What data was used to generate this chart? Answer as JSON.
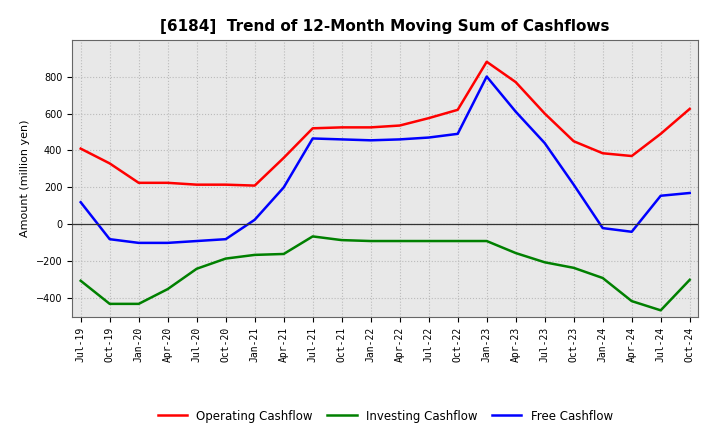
{
  "title": "[6184]  Trend of 12-Month Moving Sum of Cashflows",
  "ylabel": "Amount (million yen)",
  "x_labels": [
    "Jul-19",
    "Oct-19",
    "Jan-20",
    "Apr-20",
    "Jul-20",
    "Oct-20",
    "Jan-21",
    "Apr-21",
    "Jul-21",
    "Oct-21",
    "Jan-22",
    "Apr-22",
    "Jul-22",
    "Oct-22",
    "Jan-23",
    "Apr-23",
    "Jul-23",
    "Oct-23",
    "Jan-24",
    "Apr-24",
    "Jul-24",
    "Oct-24"
  ],
  "operating": [
    410,
    330,
    225,
    225,
    215,
    215,
    210,
    360,
    520,
    525,
    525,
    535,
    575,
    620,
    880,
    770,
    600,
    450,
    385,
    370,
    490,
    625
  ],
  "investing": [
    -305,
    -430,
    -430,
    -350,
    -240,
    -185,
    -165,
    -160,
    -65,
    -85,
    -90,
    -90,
    -90,
    -90,
    -90,
    -155,
    -205,
    -235,
    -290,
    -415,
    -465,
    -300
  ],
  "free": [
    120,
    -80,
    -100,
    -100,
    -90,
    -80,
    25,
    200,
    465,
    460,
    455,
    460,
    470,
    490,
    800,
    610,
    440,
    215,
    -20,
    -40,
    155,
    170
  ],
  "ylim": [
    -500,
    1000
  ],
  "yticks": [
    -400,
    -200,
    0,
    200,
    400,
    600,
    800
  ],
  "line_colors": {
    "operating": "#ff0000",
    "investing": "#008000",
    "free": "#0000ff"
  },
  "line_width": 1.8,
  "bg_color": "#ffffff",
  "plot_bg_color": "#e8e8e8",
  "grid_color": "#bbbbbb",
  "legend_labels": [
    "Operating Cashflow",
    "Investing Cashflow",
    "Free Cashflow"
  ],
  "title_fontsize": 11,
  "ylabel_fontsize": 8,
  "tick_fontsize": 7,
  "legend_fontsize": 8.5
}
